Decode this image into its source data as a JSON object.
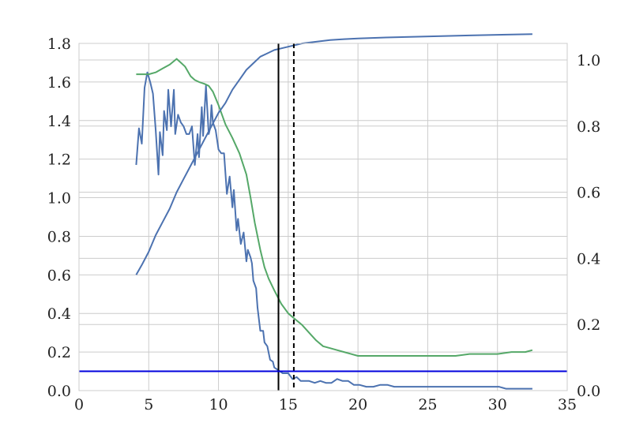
{
  "chart_data": {
    "type": "line",
    "title": "",
    "xlabel": "",
    "ylabel": "",
    "y2label": "",
    "xlim": [
      0,
      35
    ],
    "ylim": [
      0,
      1.8
    ],
    "y2lim": [
      0,
      1.05
    ],
    "grid": true,
    "x_ticks": [
      0,
      5,
      10,
      15,
      20,
      25,
      30,
      35
    ],
    "x_tick_labels": [
      "0",
      "5",
      "10",
      "15",
      "20",
      "25",
      "30",
      "35"
    ],
    "y_ticks": [
      0.0,
      0.2,
      0.4,
      0.6,
      0.8,
      1.0,
      1.2,
      1.4,
      1.6,
      1.8
    ],
    "y_tick_labels": [
      "0.0",
      "0.2",
      "0.4",
      "0.6",
      "0.8",
      "1.0",
      "1.2",
      "1.4",
      "1.6",
      "1.8"
    ],
    "y2_ticks": [
      0.0,
      0.2,
      0.4,
      0.6,
      0.8,
      1.0
    ],
    "y2_tick_labels": [
      "0.0",
      "0.2",
      "0.4",
      "0.6",
      "0.8",
      "1.0"
    ],
    "series": [
      {
        "axis": "left",
        "color": "#4c72b0",
        "x": [
          4.1,
          4.3,
          4.5,
          4.7,
          4.9,
          5.1,
          5.3,
          5.5,
          5.7,
          5.8,
          6.0,
          6.1,
          6.3,
          6.4,
          6.6,
          6.8,
          6.9,
          7.1,
          7.3,
          7.5,
          7.7,
          7.9,
          8.1,
          8.3,
          8.5,
          8.6,
          8.8,
          8.9,
          9.1,
          9.3,
          9.4,
          9.5,
          9.6,
          9.8,
          10.0,
          10.2,
          10.4,
          10.6,
          10.8,
          11.0,
          11.1,
          11.3,
          11.4,
          11.6,
          11.8,
          12.0,
          12.1,
          12.3,
          12.4,
          12.5,
          12.7,
          12.8,
          13.0,
          13.2,
          13.3,
          13.5,
          13.7,
          13.9,
          14.0,
          14.2,
          14.4,
          14.6,
          14.8,
          15.0,
          15.3,
          15.6,
          15.9,
          16.2,
          16.5,
          16.9,
          17.3,
          17.7,
          18.1,
          18.5,
          18.9,
          19.3,
          19.7,
          20.1,
          20.6,
          21.1,
          21.6,
          22.1,
          22.6,
          23.1,
          23.6,
          24.1,
          24.6,
          25.1,
          25.6,
          26.1,
          26.6,
          27.1,
          27.6,
          28.1,
          28.6,
          29.1,
          29.6,
          30.1,
          30.6,
          31.1,
          31.6,
          32.1,
          32.5
        ],
        "y": [
          1.17,
          1.36,
          1.28,
          1.57,
          1.65,
          1.6,
          1.54,
          1.35,
          1.12,
          1.34,
          1.22,
          1.45,
          1.35,
          1.56,
          1.37,
          1.56,
          1.33,
          1.43,
          1.39,
          1.37,
          1.33,
          1.33,
          1.37,
          1.17,
          1.33,
          1.21,
          1.47,
          1.32,
          1.58,
          1.33,
          1.36,
          1.48,
          1.39,
          1.35,
          1.25,
          1.23,
          1.23,
          1.02,
          1.11,
          0.95,
          1.04,
          0.83,
          0.89,
          0.76,
          0.82,
          0.67,
          0.73,
          0.69,
          0.66,
          0.57,
          0.53,
          0.43,
          0.31,
          0.31,
          0.25,
          0.23,
          0.16,
          0.15,
          0.12,
          0.11,
          0.1,
          0.09,
          0.09,
          0.09,
          0.06,
          0.07,
          0.05,
          0.05,
          0.05,
          0.04,
          0.05,
          0.04,
          0.04,
          0.06,
          0.05,
          0.05,
          0.03,
          0.03,
          0.02,
          0.02,
          0.03,
          0.03,
          0.02,
          0.02,
          0.02,
          0.02,
          0.02,
          0.02,
          0.02,
          0.02,
          0.02,
          0.02,
          0.02,
          0.02,
          0.02,
          0.02,
          0.02,
          0.02,
          0.01,
          0.01,
          0.01,
          0.01,
          0.01
        ]
      },
      {
        "axis": "left",
        "color": "#55a868",
        "x": [
          4.1,
          4.5,
          5.0,
          5.5,
          6.0,
          6.5,
          7.0,
          7.3,
          7.6,
          8.0,
          8.3,
          8.6,
          9.0,
          9.3,
          9.6,
          10.0,
          10.5,
          11.0,
          11.5,
          12.0,
          12.3,
          12.6,
          13.0,
          13.3,
          13.6,
          14.0,
          14.5,
          15.0,
          15.5,
          16.0,
          16.5,
          17.0,
          17.5,
          18.0,
          18.5,
          19.0,
          19.5,
          20.0,
          21.0,
          22.0,
          23.0,
          24.0,
          25.0,
          26.0,
          27.0,
          28.0,
          29.0,
          30.0,
          31.0,
          32.0,
          32.5
        ],
        "y": [
          1.64,
          1.64,
          1.64,
          1.65,
          1.67,
          1.69,
          1.72,
          1.7,
          1.68,
          1.63,
          1.61,
          1.6,
          1.59,
          1.58,
          1.55,
          1.48,
          1.38,
          1.31,
          1.23,
          1.12,
          1.0,
          0.87,
          0.73,
          0.64,
          0.58,
          0.52,
          0.45,
          0.4,
          0.37,
          0.34,
          0.3,
          0.26,
          0.23,
          0.22,
          0.21,
          0.2,
          0.19,
          0.18,
          0.18,
          0.18,
          0.18,
          0.18,
          0.18,
          0.18,
          0.18,
          0.19,
          0.19,
          0.19,
          0.2,
          0.2,
          0.21
        ]
      },
      {
        "axis": "right",
        "color": "#4c72b0",
        "x": [
          4.1,
          4.5,
          5.0,
          5.5,
          6.0,
          6.5,
          7.0,
          7.5,
          8.0,
          8.5,
          9.0,
          9.5,
          10.0,
          10.5,
          11.0,
          11.5,
          12.0,
          12.5,
          13.0,
          13.5,
          14.0,
          14.5,
          15.0,
          15.5,
          16.0,
          17.0,
          18.0,
          19.0,
          20.0,
          22.0,
          24.0,
          26.0,
          28.0,
          30.0,
          32.5
        ],
        "y": [
          0.35,
          0.38,
          0.42,
          0.47,
          0.51,
          0.55,
          0.6,
          0.64,
          0.68,
          0.72,
          0.76,
          0.8,
          0.84,
          0.87,
          0.91,
          0.94,
          0.97,
          0.99,
          1.01,
          1.02,
          1.03,
          1.035,
          1.04,
          1.045,
          1.05,
          1.055,
          1.06,
          1.063,
          1.065,
          1.068,
          1.07,
          1.072,
          1.074,
          1.076,
          1.078
        ]
      }
    ],
    "vlines": [
      {
        "x": 14.3,
        "style": "solid",
        "color": "#000000"
      },
      {
        "x": 15.4,
        "style": "dashed",
        "color": "#000000"
      }
    ],
    "hlines": [
      {
        "y": 0.1,
        "style": "solid",
        "color": "#0000dd"
      }
    ]
  }
}
